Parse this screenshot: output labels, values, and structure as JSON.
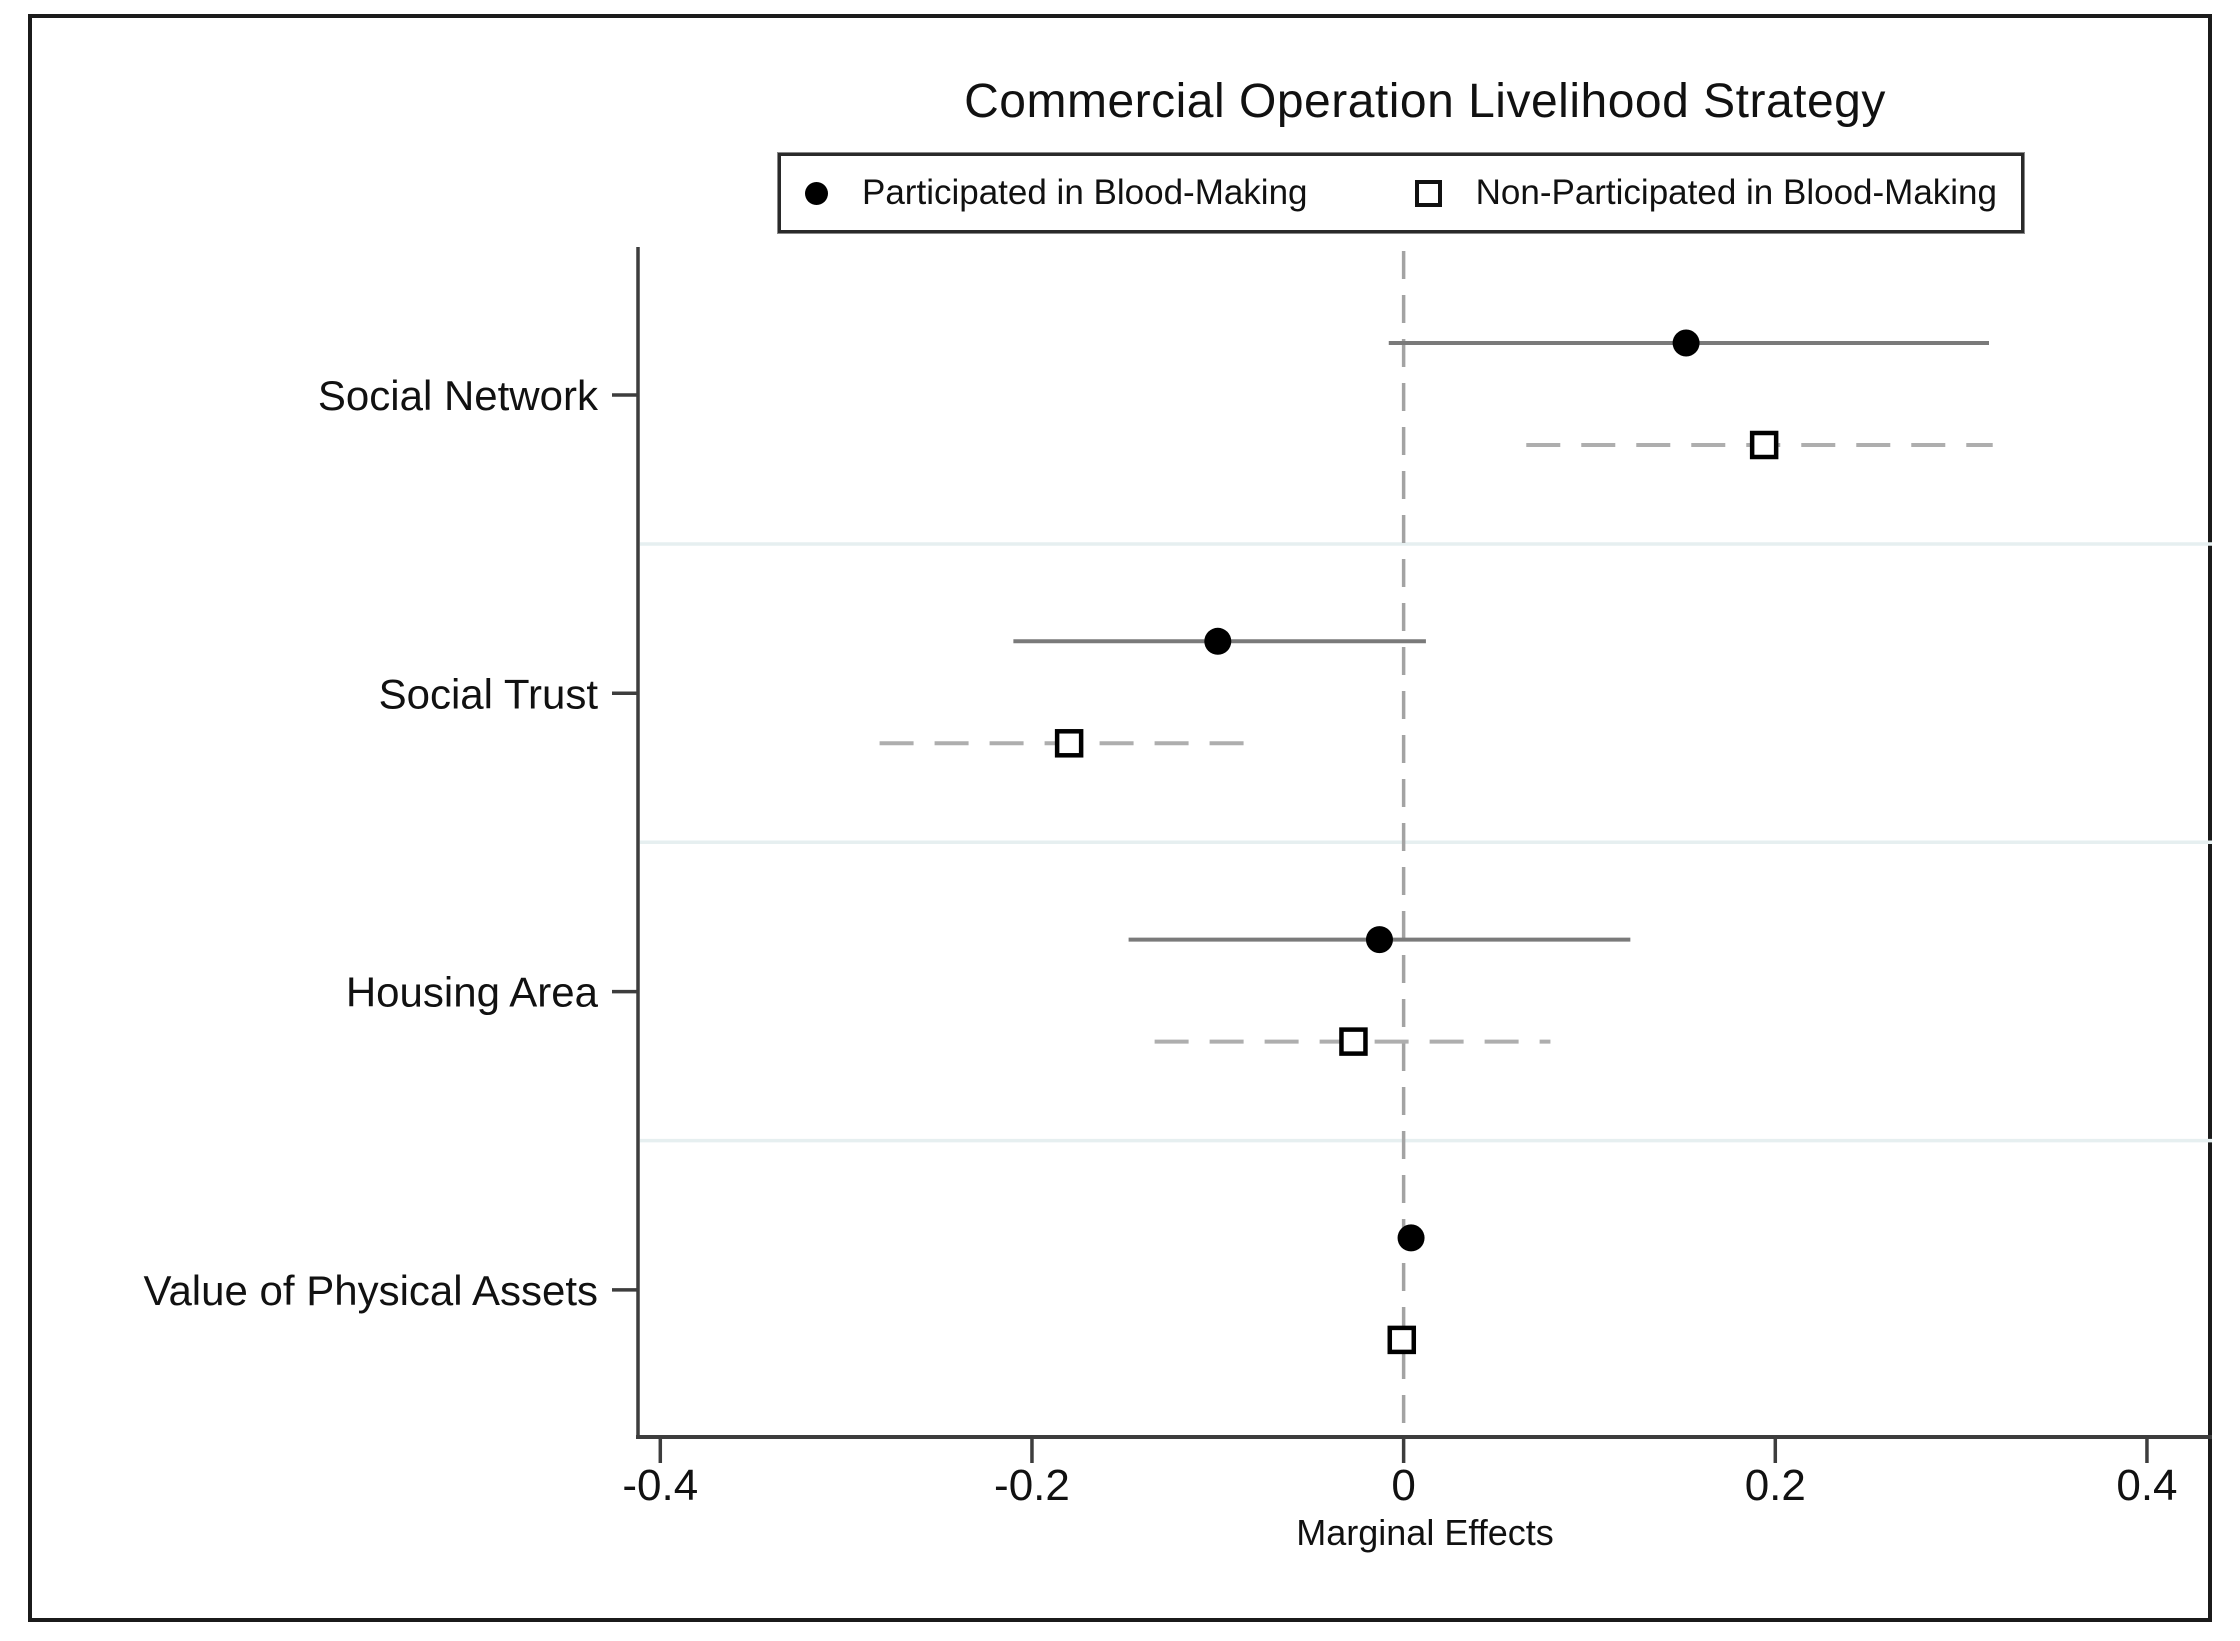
{
  "chart_data": {
    "type": "scatter",
    "subtype": "dot-and-whisker coefficient plot",
    "title": "Commercial Operation Livelihood Strategy",
    "xlabel": "Marginal Effects",
    "ylabel": "",
    "xlim": [
      -0.412,
      0.435
    ],
    "xticks": [
      -0.4,
      -0.2,
      0,
      0.2,
      0.4
    ],
    "xtick_labels": [
      "-0.4",
      "-0.2",
      "0",
      "0.2",
      "0.4"
    ],
    "reference_line_x": 0,
    "grid": "light horizontal separator lines between category blocks",
    "legend_position": "top-center, boxed, above plot area",
    "categories": [
      "Social Network",
      "Social Trust",
      "Housing Area",
      "Value of Physical Assets"
    ],
    "series": [
      {
        "name": "Participated in Blood-Making",
        "marker": "filled-circle",
        "line_style": "solid",
        "estimates": [
          0.152,
          -0.1,
          -0.013,
          0.004
        ],
        "ci_low": [
          -0.008,
          -0.21,
          -0.148,
          0.004
        ],
        "ci_high": [
          0.315,
          0.012,
          0.122,
          0.004
        ]
      },
      {
        "name": "Non-Participated in Blood-Making",
        "marker": "open-square",
        "line_style": "dashed",
        "estimates": [
          0.194,
          -0.18,
          -0.027,
          -0.001
        ],
        "ci_low": [
          0.066,
          -0.282,
          -0.134,
          -0.001
        ],
        "ci_high": [
          0.317,
          -0.085,
          0.079,
          -0.001
        ]
      }
    ]
  },
  "colors": {
    "frame_border": "#1b1b1b",
    "axis": "#3d3d3d",
    "solid_ci": "#7a7a7a",
    "dashed_ci": "#aeaeae",
    "zero_line": "#a3a3a3",
    "grid_line": "#e6eff0",
    "marker": "#000000",
    "text": "#111111",
    "background": "#ffffff"
  }
}
